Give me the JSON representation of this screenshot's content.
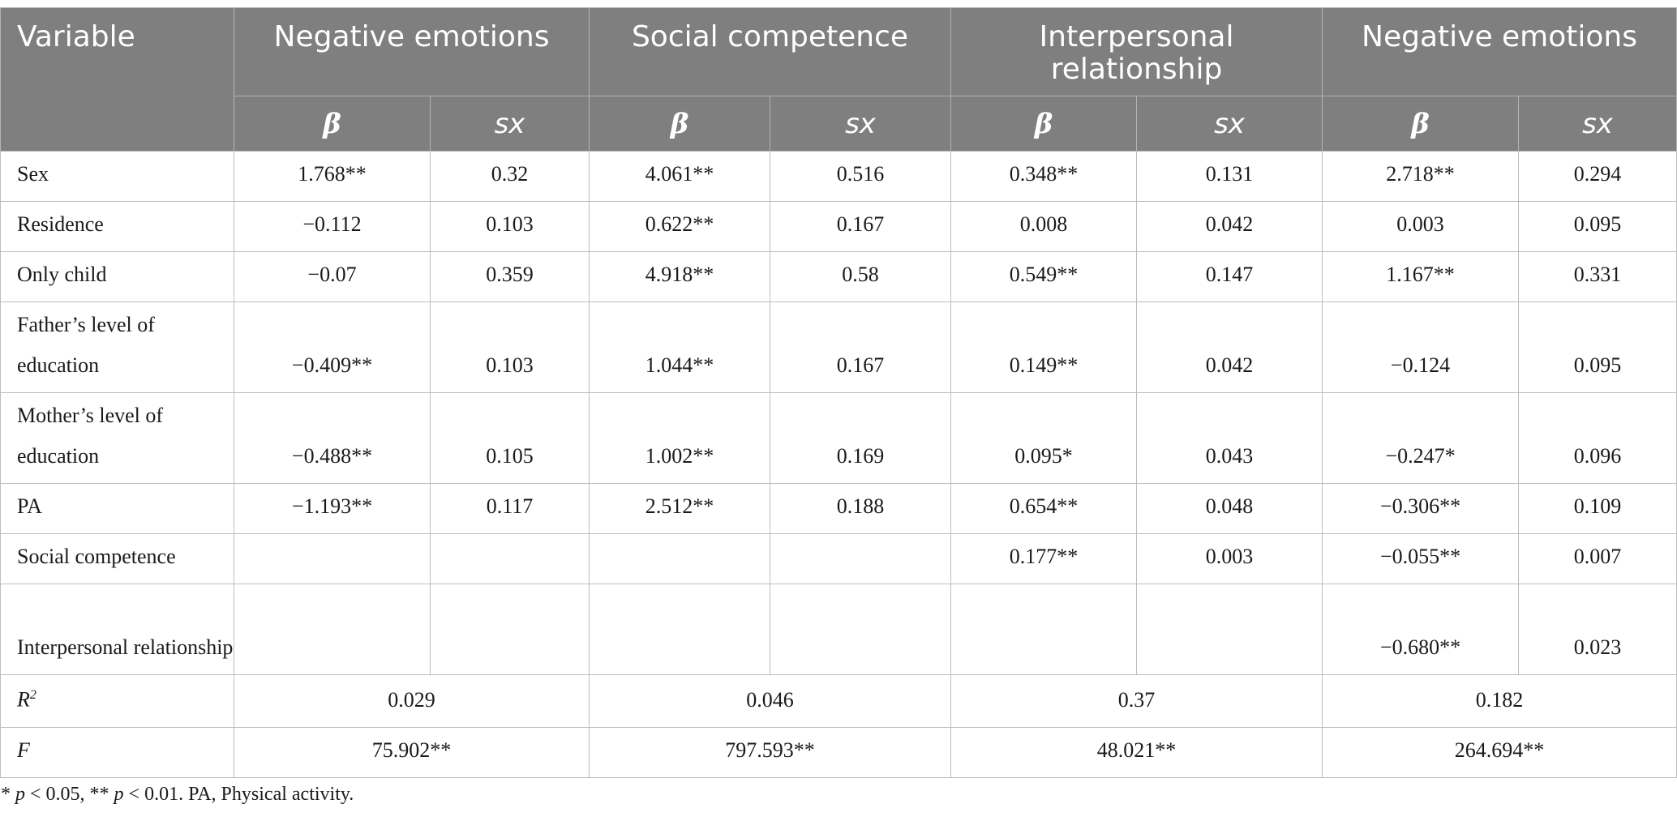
{
  "header": {
    "variable": "Variable",
    "groups": [
      "Negative emotions",
      "Social competence",
      "Interpersonal relationship",
      "Negative emotions"
    ],
    "beta": "β",
    "sx": "sx"
  },
  "rows": [
    {
      "label": "Sex",
      "vals": [
        "1.768**",
        "0.32",
        "4.061**",
        "0.516",
        "0.348**",
        "0.131",
        "2.718**",
        "0.294"
      ]
    },
    {
      "label": "Residence",
      "vals": [
        "−0.112",
        "0.103",
        "0.622**",
        "0.167",
        "0.008",
        "0.042",
        "0.003",
        "0.095"
      ]
    },
    {
      "label": "Only child",
      "vals": [
        "−0.07",
        "0.359",
        "4.918**",
        "0.58",
        "0.549**",
        "0.147",
        "1.167**",
        "0.331"
      ]
    },
    {
      "label": "Father’s level of education",
      "vals": [
        "−0.409**",
        "0.103",
        "1.044**",
        "0.167",
        "0.149**",
        "0.042",
        "−0.124",
        "0.095"
      ]
    },
    {
      "label": "Mother’s level of education",
      "vals": [
        "−0.488**",
        "0.105",
        "1.002**",
        "0.169",
        "0.095*",
        "0.043",
        "−0.247*",
        "0.096"
      ]
    },
    {
      "label": "PA",
      "vals": [
        "−1.193**",
        "0.117",
        "2.512**",
        "0.188",
        "0.654**",
        "0.048",
        "−0.306**",
        "0.109"
      ]
    },
    {
      "label": "Social competence",
      "vals": [
        "",
        "",
        "",
        "",
        "0.177**",
        "0.003",
        "−0.055**",
        "0.007"
      ]
    },
    {
      "label": "Interpersonal relationship",
      "vals": [
        "",
        "",
        "",
        "",
        "",
        "",
        "−0.680**",
        "0.023"
      ]
    }
  ],
  "r2": {
    "label": "R",
    "sup": "2",
    "vals": [
      "0.029",
      "0.046",
      "0.37",
      "0.182"
    ]
  },
  "f": {
    "label": "F",
    "vals": [
      "75.902**",
      "797.593**",
      "48.021**",
      "264.694**"
    ]
  },
  "note": {
    "p1": "p",
    "t1": " < 0.05, ** ",
    "p2": "p",
    "t2": " < 0.01. PA, Physical activity.",
    "star": "* "
  }
}
